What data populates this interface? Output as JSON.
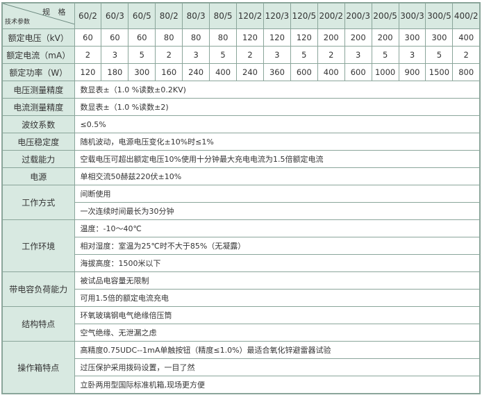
{
  "corner": {
    "top": "规 格",
    "bottom": "技术参数"
  },
  "specs": [
    "60/2",
    "60/3",
    "60/5",
    "80/2",
    "80/3",
    "80/5",
    "120/2",
    "120/3",
    "120/5",
    "200/2",
    "200/3",
    "200/5",
    "300/3",
    "300/5",
    "400/2"
  ],
  "rated": [
    {
      "label": "额定电压（kV）",
      "values": [
        "60",
        "60",
        "60",
        "80",
        "80",
        "80",
        "120",
        "120",
        "120",
        "200",
        "200",
        "200",
        "300",
        "300",
        "400"
      ]
    },
    {
      "label": "额定电流（mA）",
      "values": [
        "2",
        "3",
        "5",
        "2",
        "3",
        "5",
        "2",
        "3",
        "5",
        "2",
        "3",
        "5",
        "3",
        "5",
        "2"
      ]
    },
    {
      "label": "额定功率（W）",
      "values": [
        "120",
        "180",
        "300",
        "160",
        "240",
        "400",
        "240",
        "360",
        "600",
        "400",
        "600",
        "1000",
        "900",
        "1500",
        "800"
      ]
    }
  ],
  "params": [
    {
      "label": "电压测量精度",
      "values": [
        "数显表±（1.0 %读数±0.2KV)"
      ]
    },
    {
      "label": "电流测量精度",
      "values": [
        "数显表±（1.0 %读数±2)"
      ]
    },
    {
      "label": "波纹系数",
      "values": [
        "≤0.5%"
      ]
    },
    {
      "label": "电压稳定度",
      "values": [
        "随机波动，电源电压变化±10%时≤1%"
      ]
    },
    {
      "label": "过载能力",
      "values": [
        "空载电压可超出额定电压10%使用十分钟最大充电电流为1.5倍额定电流"
      ]
    },
    {
      "label": "电源",
      "values": [
        "单相交流50赫兹220伏±10%"
      ]
    },
    {
      "label": "工作方式",
      "values": [
        "间断使用",
        "一次连续时间最长为30分钟"
      ]
    },
    {
      "label": "工作环境",
      "values": [
        "温度：-10～40℃",
        "相对湿度：室温为25℃时不大于85%（无凝露）",
        "海拔高度：1500米以下"
      ]
    },
    {
      "label": "带电容负荷能力",
      "values": [
        "被试品电容量无限制",
        "可用1.5倍的额定电流充电"
      ]
    },
    {
      "label": "结构特点",
      "values": [
        "环氧玻璃钢电气绝缘倍压筒",
        "空气绝缘、无泄漏之虑"
      ]
    },
    {
      "label": "操作箱特点",
      "values": [
        "高精度0.75UDC--1mA单触按钮（精度≤1.0%）最适合氧化锌避雷器试验",
        "过压保护采用拨码设置，一目了然",
        "立卧两用型国际标准机箱,现场更方便"
      ]
    }
  ]
}
